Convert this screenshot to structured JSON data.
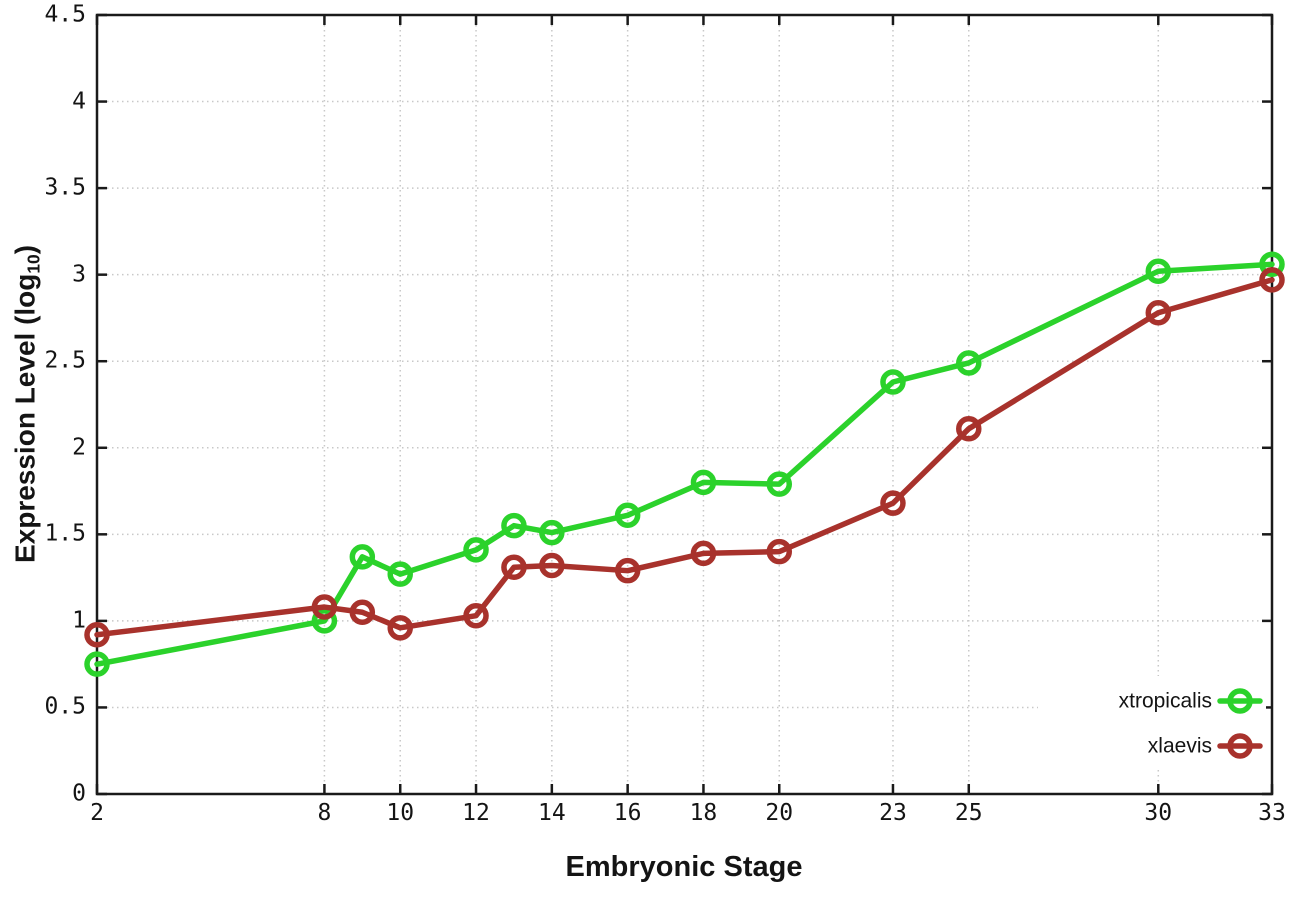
{
  "chart_data": {
    "type": "line",
    "title": "",
    "xlabel": "Embryonic Stage",
    "ylabel": "Expression Level (log10)",
    "ylabel_parts": {
      "prefix": "Expression Level (log",
      "sub": "10",
      "suffix": ")"
    },
    "x": [
      2,
      8,
      9,
      10,
      12,
      13,
      14,
      16,
      18,
      20,
      23,
      25,
      30,
      33
    ],
    "series": [
      {
        "name": "xtropicalis",
        "color": "#2bd22b",
        "values": [
          0.75,
          1.0,
          1.37,
          1.27,
          1.41,
          1.55,
          1.51,
          1.61,
          1.8,
          1.79,
          2.38,
          2.49,
          3.02,
          3.06
        ]
      },
      {
        "name": "xlaevis",
        "color": "#a8322c",
        "values": [
          0.92,
          1.08,
          1.05,
          0.96,
          1.03,
          1.31,
          1.32,
          1.29,
          1.39,
          1.4,
          1.68,
          2.11,
          2.78,
          2.97
        ]
      }
    ],
    "xlim": [
      2,
      33
    ],
    "ylim": [
      0,
      4.5
    ],
    "xticks": {
      "values": [
        2,
        8,
        10,
        12,
        14,
        16,
        18,
        20,
        23,
        25,
        30,
        33
      ],
      "labels": [
        "2",
        "8",
        "10",
        "12",
        "14",
        "16",
        "18",
        "20",
        "23",
        "25",
        "30",
        "33"
      ]
    },
    "yticks": {
      "values": [
        0,
        0.5,
        1,
        1.5,
        2,
        2.5,
        3,
        3.5,
        4,
        4.5
      ],
      "labels": [
        "0",
        "0.5",
        "1",
        "1.5",
        "2",
        "2.5",
        "3",
        "3.5",
        "4",
        "4.5"
      ]
    },
    "grid": "dotted",
    "legend_position": "bottom-right",
    "colors": {
      "background": "#ffffff",
      "grid": "#c8c8c8",
      "border": "#1a1a1a",
      "text": "#141414"
    }
  }
}
